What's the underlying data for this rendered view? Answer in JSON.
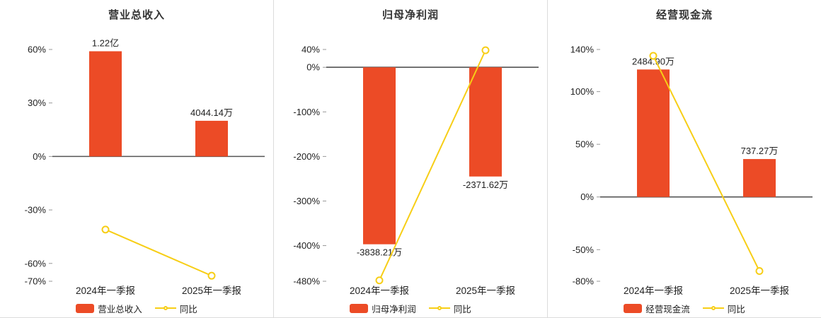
{
  "colors": {
    "background": "#ffffff",
    "bar": "#ec4b26",
    "line": "#f7ce16",
    "marker_fill": "#ffffff",
    "zero_axis": "#555555",
    "tick": "#999999",
    "text": "#222222",
    "divider": "#dcdcdc"
  },
  "chart_data": [
    {
      "type": "bar",
      "title": "营业总收入",
      "legend_position": "bottom",
      "grid": false,
      "categories": [
        "2024年一季报",
        "2025年一季报"
      ],
      "bar_series": {
        "name": "营业总收入",
        "value_labels": [
          "1.22亿",
          "4044.14万"
        ],
        "display_pct": [
          59,
          20
        ]
      },
      "line_series": {
        "name": "同比",
        "values_pct": [
          -41,
          -66.9
        ]
      },
      "y_axis": {
        "unit": "%",
        "range": [
          -70,
          60
        ],
        "ticks": [
          {
            "label": "60%",
            "value": 60
          },
          {
            "label": "30%",
            "value": 30
          },
          {
            "label": "0%",
            "value": 0
          },
          {
            "label": "-30%",
            "value": -30
          },
          {
            "label": "-60%",
            "value": -60
          },
          {
            "label": "-70%",
            "value": -70
          }
        ]
      }
    },
    {
      "type": "bar",
      "title": "归母净利润",
      "legend_position": "bottom",
      "grid": false,
      "categories": [
        "2024年一季报",
        "2025年一季报"
      ],
      "bar_series": {
        "name": "归母净利润",
        "value_labels": [
          "-3838.21万",
          "-2371.62万"
        ],
        "display_pct": [
          -397,
          -245
        ]
      },
      "line_series": {
        "name": "同比",
        "values_pct": [
          -478,
          38.2
        ]
      },
      "y_axis": {
        "unit": "%",
        "range": [
          -480,
          40
        ],
        "ticks": [
          {
            "label": "40%",
            "value": 40
          },
          {
            "label": "0%",
            "value": 0
          },
          {
            "label": "-100%",
            "value": -100
          },
          {
            "label": "-200%",
            "value": -200
          },
          {
            "label": "-300%",
            "value": -300
          },
          {
            "label": "-400%",
            "value": -400
          },
          {
            "label": "-480%",
            "value": -480
          }
        ]
      }
    },
    {
      "type": "bar",
      "title": "经营现金流",
      "legend_position": "bottom",
      "grid": false,
      "categories": [
        "2024年一季报",
        "2025年一季报"
      ],
      "bar_series": {
        "name": "经营现金流",
        "value_labels": [
          "2484.90万",
          "737.27万"
        ],
        "display_pct": [
          121,
          36
        ]
      },
      "line_series": {
        "name": "同比",
        "values_pct": [
          134,
          -70.3
        ]
      },
      "y_axis": {
        "unit": "%",
        "range": [
          -80,
          140
        ],
        "ticks": [
          {
            "label": "140%",
            "value": 140
          },
          {
            "label": "100%",
            "value": 100
          },
          {
            "label": "50%",
            "value": 50
          },
          {
            "label": "0%",
            "value": 0
          },
          {
            "label": "-50%",
            "value": -50
          },
          {
            "label": "-80%",
            "value": -80
          }
        ]
      }
    }
  ]
}
